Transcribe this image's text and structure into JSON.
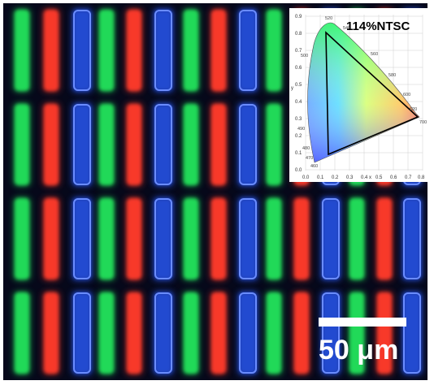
{
  "micrograph": {
    "description_colors": {
      "background": "#06081a",
      "green": "#22e05a",
      "red": "#ff3a2a",
      "blue": "#2a5bff"
    }
  },
  "inset": {
    "label": "114%NTSC",
    "y_axis_symbol": "y",
    "x_axis_symbol": "x",
    "y_ticks": [
      "0.9",
      "0.8",
      "0.7",
      "0.6",
      "0.5",
      "0.4",
      "0.3",
      "0.2",
      "0.1",
      "0.0"
    ],
    "x_ticks": [
      "0.0",
      "0.1",
      "0.2",
      "0.3",
      "0.4",
      "0.5",
      "0.6",
      "0.7",
      "0.8"
    ],
    "wavelength_labels": [
      "520",
      "540",
      "500",
      "560",
      "580",
      "600",
      "620",
      "700",
      "490",
      "480",
      "470",
      "460"
    ]
  },
  "scale_bar": {
    "label": "50 μm"
  }
}
